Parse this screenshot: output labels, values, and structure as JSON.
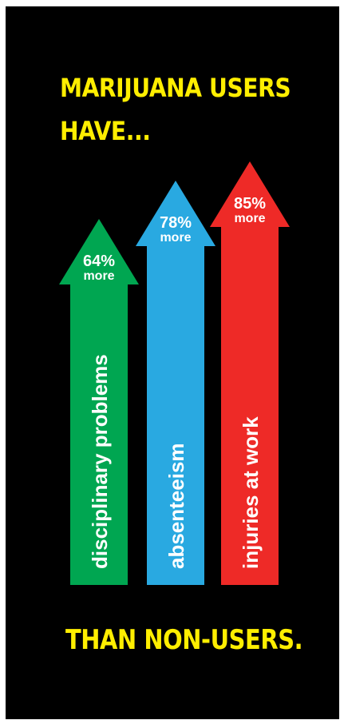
{
  "headline": {
    "line1": "MARIJUANA USERS",
    "line2": "HAVE...",
    "footer": "THAN NON-USERS."
  },
  "colors": {
    "background": "#000000",
    "headline": "#ffee00",
    "text": "#ffffff"
  },
  "chart_data": {
    "type": "bar",
    "categories": [
      "disciplinary problems",
      "absenteeism",
      "injuries at work"
    ],
    "values": [
      64,
      78,
      85
    ],
    "value_labels": [
      "64%",
      "78%",
      "85%"
    ],
    "value_suffix": "more",
    "colors": [
      "#00a651",
      "#29a9e1",
      "#ee2a27"
    ],
    "title": "MARIJUANA USERS HAVE...",
    "xlabel": "",
    "ylabel": ""
  }
}
